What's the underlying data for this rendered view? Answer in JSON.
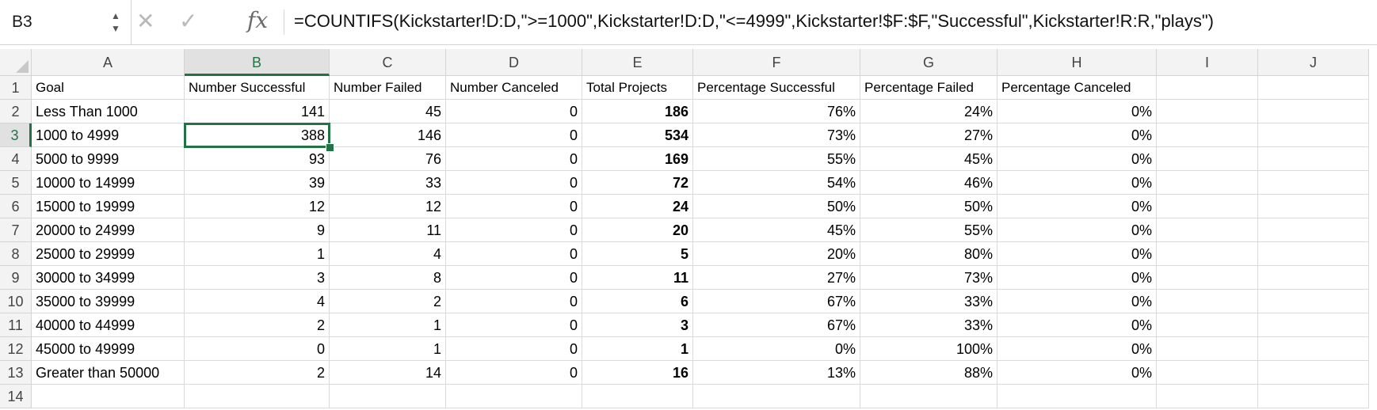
{
  "formula_bar": {
    "name_box": "B3",
    "cancel_icon": "x-icon",
    "enter_icon": "check-icon",
    "fx_label": "fx",
    "formula": "=COUNTIFS(Kickstarter!D:D,\">=1000\",Kickstarter!D:D,\"<=4999\",Kickstarter!$F:$F,\"Successful\",Kickstarter!R:R,\"plays\")"
  },
  "columns": [
    "A",
    "B",
    "C",
    "D",
    "E",
    "F",
    "G",
    "H",
    "I",
    "J"
  ],
  "active_column": "B",
  "active_row": "3",
  "rows": [
    {
      "n": "1",
      "cells": [
        "Goal",
        "Number Successful",
        "Number Failed",
        "Number Canceled",
        "Total Projects",
        "Percentage Successful",
        "Percentage Failed",
        "Percentage Canceled",
        "",
        ""
      ]
    },
    {
      "n": "2",
      "cells": [
        "Less Than 1000",
        "141",
        "45",
        "0",
        "186",
        "76%",
        "24%",
        "0%",
        "",
        ""
      ]
    },
    {
      "n": "3",
      "cells": [
        "1000 to 4999",
        "388",
        "146",
        "0",
        "534",
        "73%",
        "27%",
        "0%",
        "",
        ""
      ]
    },
    {
      "n": "4",
      "cells": [
        "5000 to 9999",
        "93",
        "76",
        "0",
        "169",
        "55%",
        "45%",
        "0%",
        "",
        ""
      ]
    },
    {
      "n": "5",
      "cells": [
        "10000 to 14999",
        "39",
        "33",
        "0",
        "72",
        "54%",
        "46%",
        "0%",
        "",
        ""
      ]
    },
    {
      "n": "6",
      "cells": [
        "15000 to 19999",
        "12",
        "12",
        "0",
        "24",
        "50%",
        "50%",
        "0%",
        "",
        ""
      ]
    },
    {
      "n": "7",
      "cells": [
        "20000 to 24999",
        "9",
        "11",
        "0",
        "20",
        "45%",
        "55%",
        "0%",
        "",
        ""
      ]
    },
    {
      "n": "8",
      "cells": [
        "25000 to 29999",
        "1",
        "4",
        "0",
        "5",
        "20%",
        "80%",
        "0%",
        "",
        ""
      ]
    },
    {
      "n": "9",
      "cells": [
        "30000 to 34999",
        "3",
        "8",
        "0",
        "11",
        "27%",
        "73%",
        "0%",
        "",
        ""
      ]
    },
    {
      "n": "10",
      "cells": [
        "35000 to 39999",
        "4",
        "2",
        "0",
        "6",
        "67%",
        "33%",
        "0%",
        "",
        ""
      ]
    },
    {
      "n": "11",
      "cells": [
        "40000 to 44999",
        "2",
        "1",
        "0",
        "3",
        "67%",
        "33%",
        "0%",
        "",
        ""
      ]
    },
    {
      "n": "12",
      "cells": [
        "45000 to 49999",
        "0",
        "1",
        "0",
        "1",
        "0%",
        "100%",
        "0%",
        "",
        ""
      ]
    },
    {
      "n": "13",
      "cells": [
        "Greater than 50000",
        "2",
        "14",
        "0",
        "16",
        "13%",
        "88%",
        "0%",
        "",
        ""
      ]
    },
    {
      "n": "14",
      "cells": [
        "",
        "",
        "",
        "",
        "",
        "",
        "",
        "",
        "",
        ""
      ]
    }
  ],
  "colors": {
    "accent": "#217346",
    "header_bg": "#f3f3f3",
    "gridline": "#dadada"
  }
}
